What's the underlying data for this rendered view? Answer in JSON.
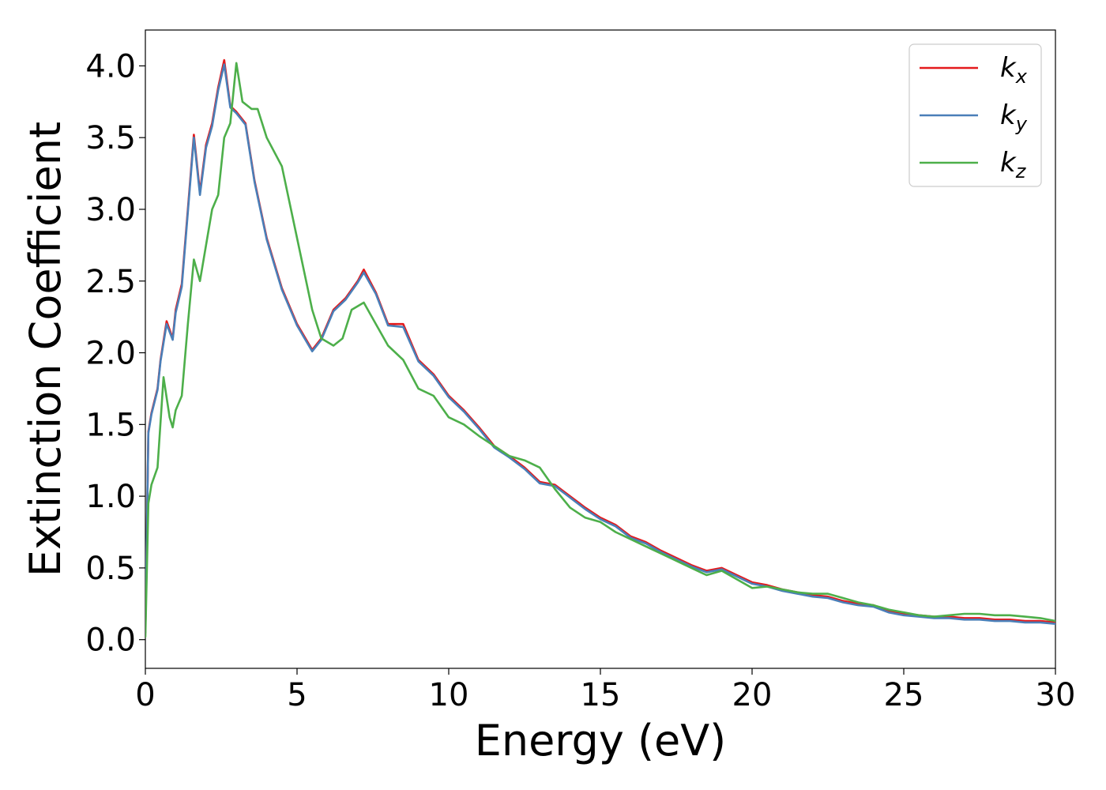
{
  "chart_data": {
    "type": "line",
    "title": "",
    "xlabel": "Energy (eV)",
    "ylabel": "Extinction Coefficient",
    "xlim": [
      0,
      30
    ],
    "ylim": [
      -0.2,
      4.25
    ],
    "xticks": [
      0,
      5,
      10,
      15,
      20,
      25,
      30
    ],
    "xtick_labels": [
      "0",
      "5",
      "10",
      "15",
      "20",
      "25",
      "30"
    ],
    "yticks": [
      0.0,
      0.5,
      1.0,
      1.5,
      2.0,
      2.5,
      3.0,
      3.5,
      4.0
    ],
    "ytick_labels": [
      "0.0",
      "0.5",
      "1.0",
      "1.5",
      "2.0",
      "2.5",
      "3.0",
      "3.5",
      "4.0"
    ],
    "grid": false,
    "legend_position": "top-right",
    "series": [
      {
        "name": "k_x",
        "legend_base": "k",
        "legend_sub": "x",
        "color": "#e41a1c",
        "x": [
          0.0,
          0.1,
          0.2,
          0.4,
          0.5,
          0.7,
          0.9,
          1.0,
          1.2,
          1.4,
          1.6,
          1.8,
          2.0,
          2.2,
          2.4,
          2.6,
          2.8,
          3.0,
          3.3,
          3.6,
          4.0,
          4.5,
          5.0,
          5.5,
          5.8,
          6.2,
          6.6,
          7.0,
          7.2,
          7.6,
          8.0,
          8.5,
          9.0,
          9.5,
          10.0,
          10.5,
          11.0,
          11.5,
          12.0,
          12.5,
          13.0,
          13.5,
          14.0,
          14.5,
          15.0,
          15.5,
          16.0,
          16.5,
          17.0,
          17.5,
          18.0,
          18.5,
          19.0,
          19.5,
          20.0,
          20.5,
          21.0,
          21.5,
          22.0,
          22.5,
          23.0,
          23.5,
          24.0,
          24.5,
          25.0,
          25.5,
          26.0,
          26.5,
          27.0,
          27.5,
          28.0,
          28.5,
          29.0,
          29.5,
          30.0
        ],
        "y": [
          0.05,
          1.45,
          1.58,
          1.75,
          1.95,
          2.22,
          2.1,
          2.3,
          2.48,
          3.0,
          3.52,
          3.12,
          3.45,
          3.6,
          3.85,
          4.04,
          3.72,
          3.68,
          3.6,
          3.2,
          2.8,
          2.45,
          2.2,
          2.02,
          2.1,
          2.3,
          2.38,
          2.5,
          2.58,
          2.42,
          2.2,
          2.2,
          1.95,
          1.85,
          1.7,
          1.6,
          1.48,
          1.35,
          1.28,
          1.2,
          1.1,
          1.08,
          1.0,
          0.92,
          0.85,
          0.8,
          0.72,
          0.68,
          0.62,
          0.57,
          0.52,
          0.48,
          0.5,
          0.45,
          0.4,
          0.38,
          0.35,
          0.33,
          0.31,
          0.3,
          0.27,
          0.25,
          0.24,
          0.2,
          0.18,
          0.17,
          0.16,
          0.16,
          0.15,
          0.15,
          0.14,
          0.14,
          0.13,
          0.13,
          0.12
        ]
      },
      {
        "name": "k_y",
        "legend_base": "k",
        "legend_sub": "y",
        "color": "#4a7fb8",
        "x": [
          0.0,
          0.1,
          0.2,
          0.4,
          0.5,
          0.7,
          0.9,
          1.0,
          1.2,
          1.4,
          1.6,
          1.8,
          2.0,
          2.2,
          2.4,
          2.6,
          2.8,
          3.0,
          3.3,
          3.6,
          4.0,
          4.5,
          5.0,
          5.5,
          5.8,
          6.2,
          6.6,
          7.0,
          7.2,
          7.6,
          8.0,
          8.5,
          9.0,
          9.5,
          10.0,
          10.5,
          11.0,
          11.5,
          12.0,
          12.5,
          13.0,
          13.5,
          14.0,
          14.5,
          15.0,
          15.5,
          16.0,
          16.5,
          17.0,
          17.5,
          18.0,
          18.5,
          19.0,
          19.5,
          20.0,
          20.5,
          21.0,
          21.5,
          22.0,
          22.5,
          23.0,
          23.5,
          24.0,
          24.5,
          25.0,
          25.5,
          26.0,
          26.5,
          27.0,
          27.5,
          28.0,
          28.5,
          29.0,
          29.5,
          30.0
        ],
        "y": [
          0.05,
          1.44,
          1.57,
          1.74,
          1.94,
          2.2,
          2.09,
          2.28,
          2.46,
          2.98,
          3.5,
          3.1,
          3.43,
          3.58,
          3.83,
          4.01,
          3.71,
          3.67,
          3.59,
          3.19,
          2.79,
          2.44,
          2.19,
          2.01,
          2.09,
          2.29,
          2.37,
          2.49,
          2.56,
          2.41,
          2.19,
          2.18,
          1.94,
          1.84,
          1.69,
          1.59,
          1.47,
          1.34,
          1.27,
          1.19,
          1.09,
          1.07,
          0.99,
          0.91,
          0.84,
          0.79,
          0.71,
          0.67,
          0.61,
          0.56,
          0.51,
          0.47,
          0.49,
          0.44,
          0.39,
          0.37,
          0.34,
          0.32,
          0.3,
          0.29,
          0.26,
          0.24,
          0.23,
          0.19,
          0.17,
          0.16,
          0.15,
          0.15,
          0.14,
          0.14,
          0.13,
          0.13,
          0.12,
          0.12,
          0.11
        ]
      },
      {
        "name": "k_z",
        "legend_base": "k",
        "legend_sub": "z",
        "color": "#4daf4a",
        "x": [
          0.0,
          0.1,
          0.2,
          0.4,
          0.6,
          0.8,
          0.9,
          1.0,
          1.2,
          1.4,
          1.6,
          1.8,
          2.0,
          2.2,
          2.4,
          2.6,
          2.8,
          3.0,
          3.2,
          3.5,
          3.7,
          4.0,
          4.5,
          5.0,
          5.5,
          5.8,
          6.2,
          6.5,
          6.8,
          7.2,
          7.6,
          8.0,
          8.5,
          9.0,
          9.5,
          10.0,
          10.5,
          11.0,
          11.5,
          12.0,
          12.5,
          13.0,
          13.5,
          14.0,
          14.5,
          15.0,
          15.5,
          16.0,
          16.5,
          17.0,
          17.5,
          18.0,
          18.5,
          19.0,
          19.5,
          20.0,
          20.5,
          21.0,
          21.5,
          22.0,
          22.5,
          23.0,
          23.5,
          24.0,
          24.5,
          25.0,
          25.5,
          26.0,
          26.5,
          27.0,
          27.5,
          28.0,
          28.5,
          29.0,
          29.5,
          30.0
        ],
        "y": [
          0.02,
          0.95,
          1.08,
          1.2,
          1.83,
          1.55,
          1.48,
          1.6,
          1.7,
          2.2,
          2.65,
          2.5,
          2.75,
          3.0,
          3.1,
          3.5,
          3.6,
          4.02,
          3.75,
          3.7,
          3.7,
          3.5,
          3.3,
          2.8,
          2.3,
          2.1,
          2.05,
          2.1,
          2.3,
          2.35,
          2.2,
          2.05,
          1.95,
          1.75,
          1.7,
          1.55,
          1.5,
          1.42,
          1.35,
          1.28,
          1.25,
          1.2,
          1.05,
          0.92,
          0.85,
          0.82,
          0.75,
          0.7,
          0.65,
          0.6,
          0.55,
          0.5,
          0.45,
          0.48,
          0.42,
          0.36,
          0.37,
          0.35,
          0.33,
          0.32,
          0.32,
          0.29,
          0.26,
          0.24,
          0.21,
          0.19,
          0.17,
          0.16,
          0.17,
          0.18,
          0.18,
          0.17,
          0.17,
          0.16,
          0.15,
          0.13
        ]
      }
    ]
  }
}
